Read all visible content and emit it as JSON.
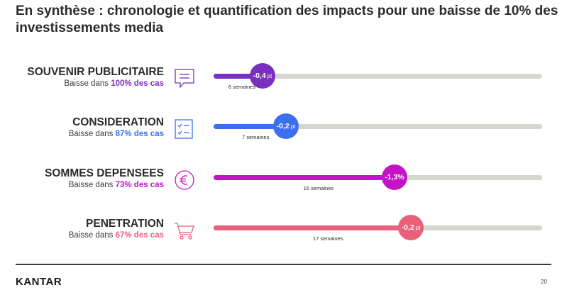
{
  "title": "En synthèse : chronologie et quantification des impacts pour une baisse de 10% des investissements media",
  "metrics": [
    {
      "name": "SOUVENIR PUBLICITAIRE",
      "sub_prefix": "Baisse dans ",
      "pct_text": "100% des cas",
      "color": "#7b2fbf",
      "icon": "speech-bubble-icon",
      "value_label": "-0,4",
      "unit": "pt",
      "weeks_label": "6 semaines",
      "progress": 0.15
    },
    {
      "name": "CONSIDERATION",
      "sub_prefix": "Baisse dans ",
      "pct_text": "87% des cas",
      "color": "#3b6ff0",
      "icon": "checklist-icon",
      "value_label": "-0,2",
      "unit": "pt",
      "weeks_label": "7 semaines",
      "progress": 0.22
    },
    {
      "name": "SOMMES DEPENSEES",
      "sub_prefix": "Baisse dans ",
      "pct_text": "73% des cas",
      "color": "#c512c9",
      "icon": "euro-icon",
      "value_label": "-1,3%",
      "unit": "",
      "weeks_label": "16 semaines",
      "progress": 0.55
    },
    {
      "name": "PENETRATION",
      "sub_prefix": "Baisse dans ",
      "pct_text": "67% des cas",
      "color": "#e8607a",
      "icon": "shopping-cart-icon",
      "value_label": "-0,2",
      "unit": "pt",
      "weeks_label": "17 semaines",
      "progress": 0.6
    }
  ],
  "footer": {
    "brand": "KANTAR",
    "page_number": "20"
  }
}
